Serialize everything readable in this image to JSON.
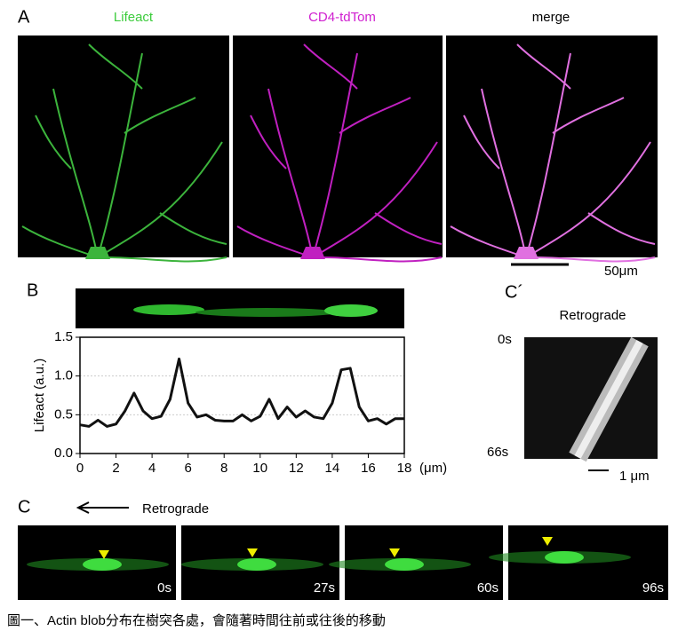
{
  "figure": {
    "panel_a": {
      "label": "A",
      "channels": [
        "Lifeact",
        "CD4-tdTom",
        "merge"
      ],
      "scale_bar": "50μm"
    },
    "panel_b": {
      "label": "B"
    },
    "panel_c_prime": {
      "label": "C´",
      "title": "Retrograde",
      "start": "0s",
      "end": "66s",
      "scale_bar": "1 μm"
    },
    "panel_c": {
      "label": "C",
      "direction": "Retrograde",
      "times": [
        "0s",
        "27s",
        "60s",
        "96s"
      ]
    },
    "caption": "圖一、Actin blob分布在樹突各處，會隨著時間往前或往後的移動"
  },
  "chart_data": {
    "type": "line",
    "y_label": "Lifeact (a.u.)",
    "x_label": "(μm)",
    "x": [
      0,
      0.5,
      1,
      1.5,
      2,
      2.5,
      3,
      3.5,
      4,
      4.5,
      5,
      5.5,
      6,
      6.5,
      7,
      7.5,
      8,
      8.5,
      9,
      9.5,
      10,
      10.5,
      11,
      11.5,
      12,
      12.5,
      13,
      13.5,
      14,
      14.5,
      15,
      15.5,
      16,
      16.5,
      17,
      17.5,
      18
    ],
    "series": [
      {
        "color": "#111111",
        "values": [
          0.37,
          0.35,
          0.43,
          0.35,
          0.38,
          0.55,
          0.78,
          0.55,
          0.45,
          0.48,
          0.7,
          1.22,
          0.65,
          0.47,
          0.5,
          0.43,
          0.42,
          0.42,
          0.5,
          0.42,
          0.48,
          0.7,
          0.45,
          0.6,
          0.47,
          0.55,
          0.47,
          0.45,
          0.65,
          1.08,
          1.1,
          0.6,
          0.42,
          0.45,
          0.38,
          0.45,
          0.45
        ]
      }
    ],
    "xlim": [
      0,
      18
    ],
    "xticks": [
      0,
      2,
      4,
      6,
      8,
      10,
      12,
      14,
      16,
      18
    ],
    "ylim": [
      0,
      1.5
    ],
    "yticks": [
      {
        "value": 0,
        "label": "0.0"
      },
      0.5,
      {
        "value": 1,
        "label": "1.0"
      },
      1.5
    ],
    "grid": true
  }
}
